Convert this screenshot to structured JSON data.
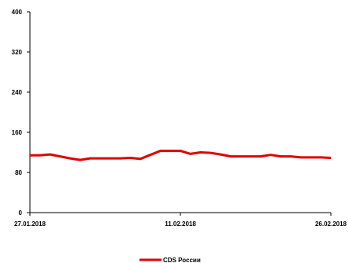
{
  "chart_data": {
    "type": "line",
    "x_tick_labels": [
      "27.01.2018",
      "11.02.2018",
      "26.02.2018"
    ],
    "y_ticks": [
      0,
      80,
      160,
      240,
      320,
      400
    ],
    "ylim": [
      0,
      400
    ],
    "grid": false,
    "legend_position": "bottom",
    "series": [
      {
        "name": "CDS России",
        "color": "#e00000",
        "x": [
          "27.01.2018",
          "28.01.2018",
          "29.01.2018",
          "30.01.2018",
          "31.01.2018",
          "01.02.2018",
          "02.02.2018",
          "03.02.2018",
          "04.02.2018",
          "05.02.2018",
          "06.02.2018",
          "07.02.2018",
          "08.02.2018",
          "09.02.2018",
          "10.02.2018",
          "11.02.2018",
          "12.02.2018",
          "13.02.2018",
          "14.02.2018",
          "15.02.2018",
          "16.02.2018",
          "17.02.2018",
          "18.02.2018",
          "19.02.2018",
          "20.02.2018",
          "21.02.2018",
          "22.02.2018",
          "23.02.2018",
          "24.02.2018",
          "25.02.2018",
          "26.02.2018"
        ],
        "values": [
          114,
          114,
          116,
          112,
          108,
          105,
          108,
          108,
          108,
          108,
          109,
          107,
          115,
          123,
          123,
          123,
          117,
          120,
          119,
          116,
          112,
          112,
          112,
          112,
          115,
          112,
          112,
          110,
          110,
          110,
          109
        ]
      }
    ]
  }
}
